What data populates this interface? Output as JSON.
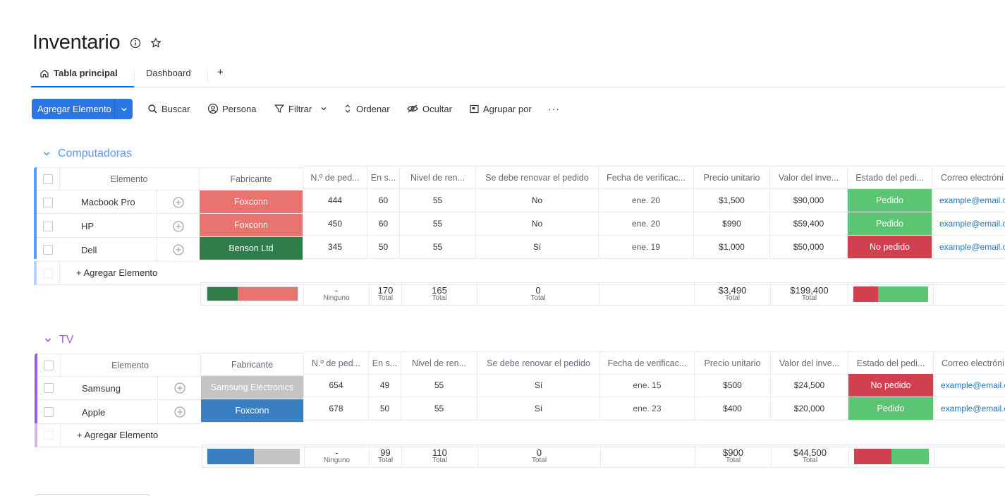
{
  "header": {
    "title": "Inventario",
    "info_icon": "info-icon",
    "star_icon": "star-icon"
  },
  "tabs": [
    {
      "label": "Tabla principal",
      "icon": "home-icon",
      "active": true
    },
    {
      "label": "Dashboard",
      "active": false
    },
    {
      "label": "+"
    }
  ],
  "toolbar": {
    "add_label": "Agregar Elemento",
    "search": "Buscar",
    "person": "Persona",
    "filter": "Filtrar",
    "sort": "Ordenar",
    "hide": "Ocultar",
    "group_by": "Agrupar por",
    "more": "···"
  },
  "columns": [
    "Elemento",
    "Fabricante",
    "N.º de ped...",
    "En s...",
    "Nivel de ren...",
    "Se debe renovar el pedido",
    "Fecha de verificac...",
    "Precio unitario",
    "Valor del inve...",
    "Estado del pedi...",
    "Correo electróni"
  ],
  "add_item_label": "+ Agregar Elemento",
  "colors": {
    "foxconn_red": "#e8736f",
    "foxconn_blue": "#3a7fc1",
    "benson": "#2f7d4b",
    "samsung": "#c4c4c4",
    "pedido": "#5bc574",
    "no_pedido": "#d0404f",
    "group1": "#579bfc",
    "group2": "#a25ddc"
  },
  "groups": [
    {
      "name": "Computadoras",
      "rows": [
        {
          "name": "Macbook Pro",
          "manufacturer": "Foxconn",
          "order_no": "444",
          "stock": "60",
          "level": "55",
          "renew": "No",
          "date": "ene. 20",
          "unit_price": "$1,500",
          "value": "$90,000",
          "status": "Pedido",
          "email": "example@email.c"
        },
        {
          "name": "HP",
          "manufacturer": "Foxconn",
          "order_no": "450",
          "stock": "60",
          "level": "55",
          "renew": "No",
          "date": "ene. 20",
          "unit_price": "$990",
          "value": "$59,400",
          "status": "Pedido",
          "email": "example@email.c"
        },
        {
          "name": "Dell",
          "manufacturer": "Benson Ltd",
          "order_no": "345",
          "stock": "50",
          "level": "55",
          "renew": "Sí",
          "date": "ene. 19",
          "unit_price": "$1,000",
          "value": "$50,000",
          "status": "No pedido",
          "email": "example@email.c"
        }
      ],
      "summary": {
        "order_no_val": "-",
        "order_no_lbl": "Ninguno",
        "stock": "170",
        "level": "165",
        "renew": "0",
        "unit_price": "$3,490",
        "value": "$199,400",
        "total_lbl": "Total"
      }
    },
    {
      "name": "TV",
      "rows": [
        {
          "name": "Samsung",
          "manufacturer": "Samsung Electronics",
          "order_no": "654",
          "stock": "49",
          "level": "55",
          "renew": "Sí",
          "date": "ene. 15",
          "unit_price": "$500",
          "value": "$24,500",
          "status": "No pedido",
          "email": "example@email.c"
        },
        {
          "name": "Apple",
          "manufacturer": "Foxconn",
          "order_no": "678",
          "stock": "50",
          "level": "55",
          "renew": "Sí",
          "date": "ene. 23",
          "unit_price": "$400",
          "value": "$20,000",
          "status": "Pedido",
          "email": "example@email.c"
        }
      ],
      "summary": {
        "order_no_val": "-",
        "order_no_lbl": "Ninguno",
        "stock": "99",
        "level": "110",
        "renew": "0",
        "unit_price": "$900",
        "value": "$44,500",
        "total_lbl": "Total"
      }
    }
  ]
}
